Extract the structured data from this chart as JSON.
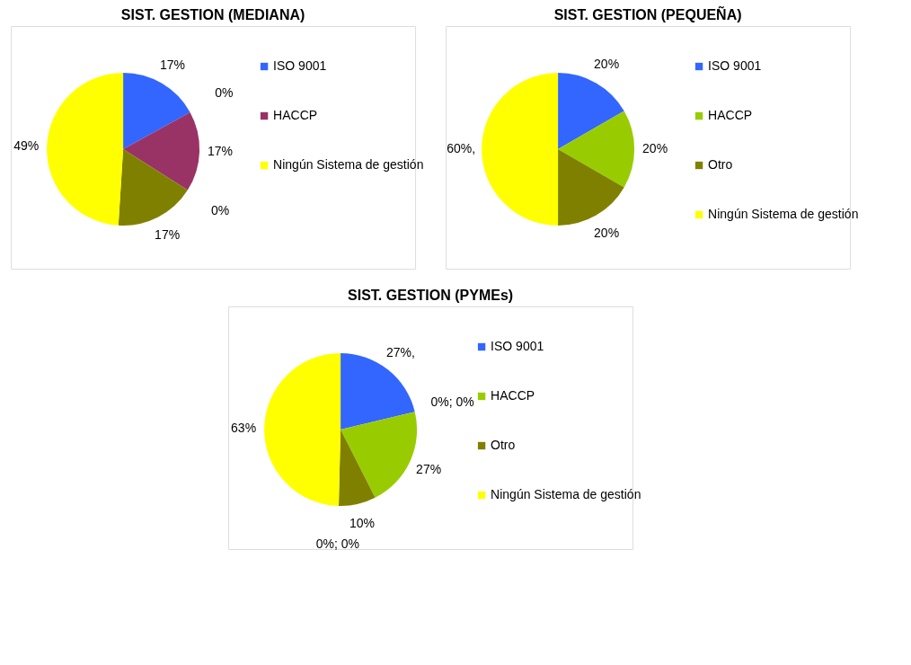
{
  "chart_data": [
    {
      "type": "pie",
      "title": "SIST. GESTION (MEDIANA)",
      "categories": [
        "ISO 9001",
        null,
        "HACCP",
        null,
        null,
        "Ningún Sistema de gestión"
      ],
      "values": [
        17,
        0,
        17,
        0,
        17,
        49
      ],
      "colors": [
        "#3366ff",
        "#000000",
        "#993366",
        "#000000",
        "#808000",
        "#ffff00"
      ],
      "value_labels": [
        "17%",
        "0%",
        "17%",
        "0%",
        "17%",
        "49%"
      ],
      "legend": "right"
    },
    {
      "type": "pie",
      "title": "SIST. GESTION (PEQUEÑA)",
      "categories": [
        "ISO 9001",
        "HACCP",
        "Otro",
        "Ningún Sistema de gestión"
      ],
      "values": [
        20,
        20,
        20,
        60
      ],
      "colors": [
        "#3366ff",
        "#99cc00",
        "#808000",
        "#ffff00"
      ],
      "value_labels": [
        "20%",
        "20%",
        "20%",
        "60%,"
      ],
      "legend": "right"
    },
    {
      "type": "pie",
      "title": "SIST. GESTION (PYMEs)",
      "categories": [
        "ISO 9001",
        null,
        "HACCP",
        "Otro",
        null,
        "Ningún Sistema de gestión"
      ],
      "values": [
        27,
        0,
        27,
        10,
        0,
        63
      ],
      "colors": [
        "#3366ff",
        "#000000",
        "#99cc00",
        "#808000",
        "#000000",
        "#ffff00"
      ],
      "value_labels": [
        "27%,",
        "0%; 0%",
        "27%",
        "10%",
        "0%; 0%",
        "63%"
      ],
      "legend": "right"
    }
  ]
}
